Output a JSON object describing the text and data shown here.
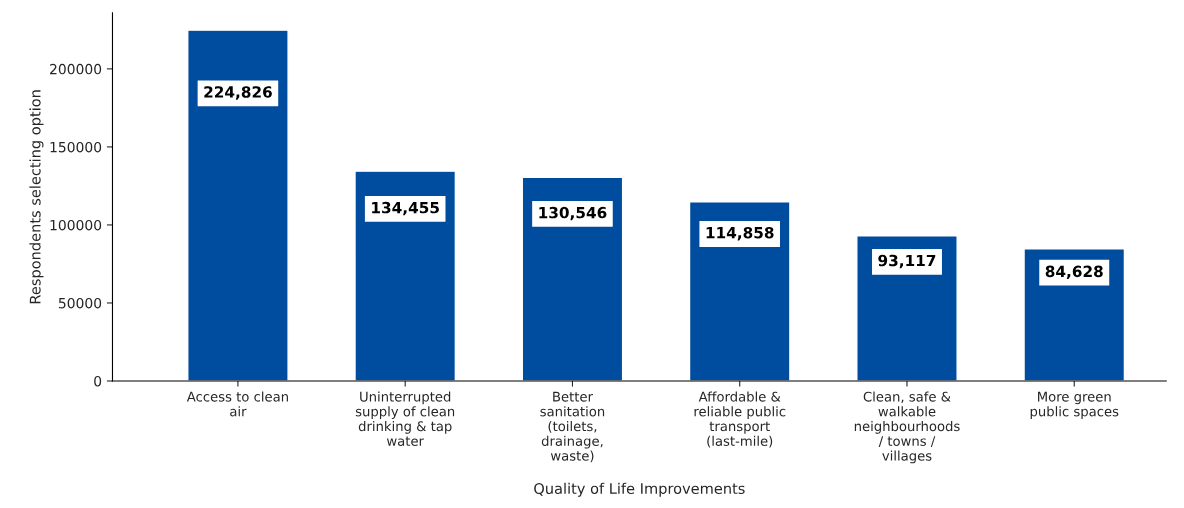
{
  "chart_data": {
    "type": "bar",
    "xlabel": "Quality of Life Improvements",
    "ylabel": "Respondents selecting option",
    "categories": [
      "Access to clean\nair",
      "Uninterrupted\nsupply of clean\ndrinking & tap\nwater",
      "Better\nsanitation\n(toilets,\ndrainage,\nwaste)",
      "Affordable &\nreliable public\ntransport\n(last-mile)",
      "Clean, safe &\nwalkable\nneighbourhoods\n/ towns /\nvillages",
      "More green\npublic spaces"
    ],
    "values": [
      224826,
      134455,
      130546,
      114858,
      93117,
      84628
    ],
    "value_labels": [
      "224,826",
      "134,455",
      "130,546",
      "114,858",
      "93,117",
      "84,628"
    ],
    "color": "#004c9f",
    "ylim": [
      0,
      236000
    ],
    "yticks": [
      0,
      50000,
      100000,
      150000,
      200000
    ],
    "grid": false
  }
}
